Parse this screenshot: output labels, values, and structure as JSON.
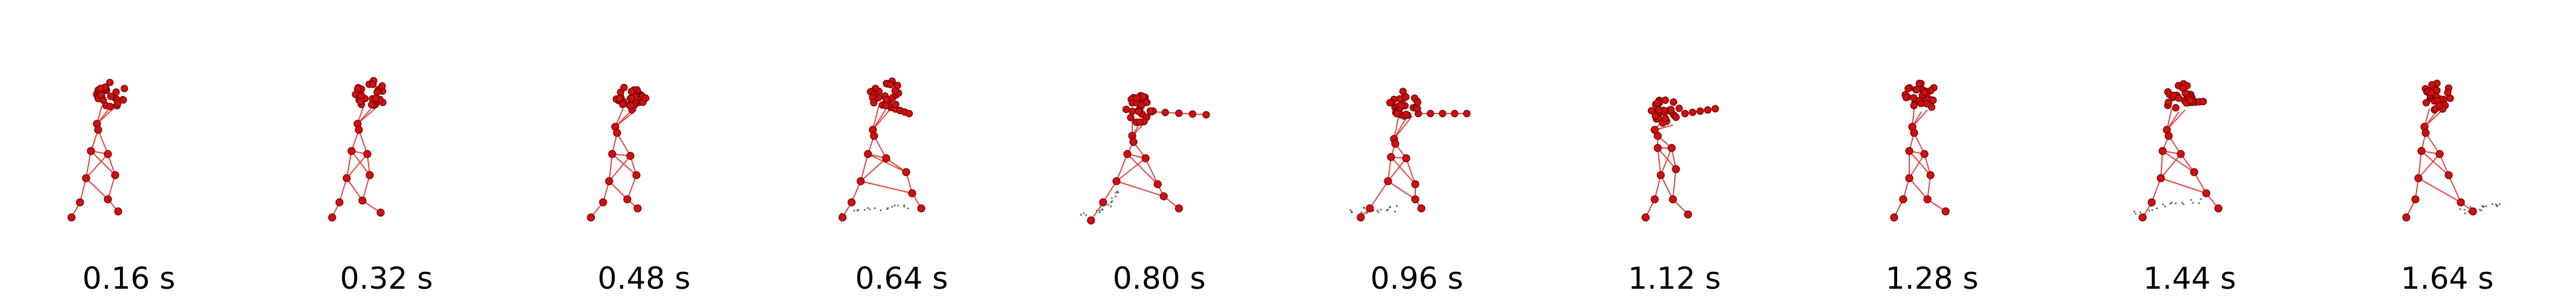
{
  "timestamps": [
    "0.16 s",
    "0.32 s",
    "0.48 s",
    "0.64 s",
    "0.80 s",
    "0.96 s",
    "1.12 s",
    "1.28 s",
    "1.44 s",
    "1.64 s"
  ],
  "colors": {
    "skeleton": "#e04848",
    "joint": "#d01010",
    "joint_edge": "#6b0000",
    "trail": "#2f3f3f",
    "background": "#ffffff"
  }
}
